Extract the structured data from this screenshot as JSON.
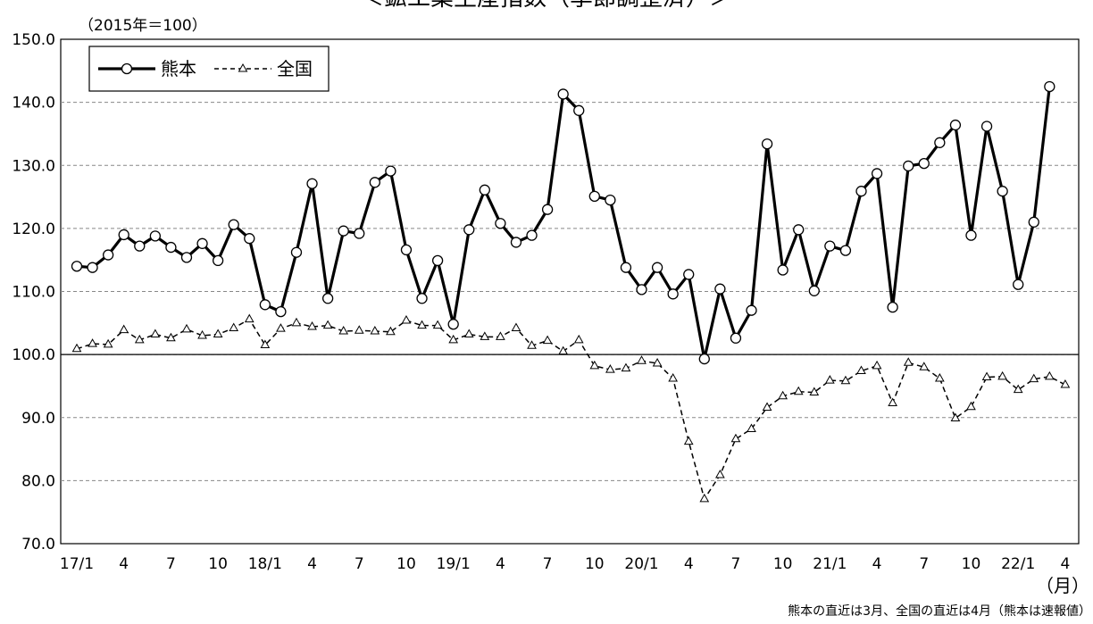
{
  "chart_data": {
    "type": "line",
    "title": "＜鉱工業生産指数（季節調整済）＞",
    "unit_note": "（2015年＝100）",
    "x_unit": "（月）",
    "footnote": "熊本の直近は3月、全国の直近は4月（熊本は速報値）",
    "categories": [
      "17/1",
      null,
      null,
      "4",
      null,
      null,
      "7",
      null,
      null,
      "10",
      null,
      null,
      "18/1",
      null,
      null,
      "4",
      null,
      null,
      "7",
      null,
      null,
      "10",
      null,
      null,
      "19/1",
      null,
      null,
      "4",
      null,
      null,
      "7",
      null,
      null,
      "10",
      null,
      null,
      "20/1",
      null,
      null,
      "4",
      null,
      null,
      "7",
      null,
      null,
      "10",
      null,
      null,
      "21/1",
      null,
      null,
      "4",
      null,
      null,
      "7",
      null,
      null,
      "10",
      null,
      null,
      "22/1",
      null,
      null,
      "4"
    ],
    "series": [
      {
        "name": "熊本",
        "color": "#000000",
        "style": "solid",
        "marker": "circle",
        "values": [
          114.0,
          113.8,
          115.8,
          119.0,
          117.2,
          118.8,
          117.0,
          115.4,
          117.6,
          114.9,
          120.6,
          118.4,
          107.9,
          106.8,
          116.2,
          127.1,
          108.9,
          119.6,
          119.2,
          127.3,
          129.1,
          116.6,
          108.9,
          114.9,
          104.8,
          119.8,
          126.1,
          120.8,
          117.8,
          118.9,
          123.0,
          141.3,
          138.7,
          125.1,
          124.5,
          113.8,
          110.3,
          113.8,
          109.6,
          112.7,
          99.3,
          110.4,
          102.6,
          107.0,
          133.4,
          113.4,
          119.8,
          110.1,
          117.2,
          116.5,
          125.9,
          128.7,
          107.5,
          129.9,
          130.3,
          133.6,
          136.4,
          118.9,
          136.2,
          125.9,
          111.1,
          121.0,
          142.5,
          null
        ]
      },
      {
        "name": "全国",
        "color": "#000000",
        "style": "dashed",
        "marker": "triangle",
        "values": [
          100.9,
          101.7,
          101.6,
          103.9,
          102.3,
          103.2,
          102.6,
          104.0,
          103.0,
          103.2,
          104.2,
          105.6,
          101.5,
          104.1,
          105.0,
          104.4,
          104.6,
          103.7,
          103.8,
          103.7,
          103.6,
          105.4,
          104.6,
          104.6,
          102.3,
          103.2,
          102.8,
          102.8,
          104.2,
          101.4,
          102.2,
          100.5,
          102.3,
          98.2,
          97.6,
          97.8,
          99.0,
          98.6,
          96.2,
          86.2,
          77.1,
          80.9,
          86.6,
          88.2,
          91.6,
          93.4,
          94.1,
          94.0,
          95.9,
          95.8,
          97.4,
          98.2,
          92.3,
          98.7,
          98.0,
          96.2,
          89.9,
          91.7,
          96.4,
          96.5,
          94.4,
          96.1,
          96.5,
          95.2
        ]
      }
    ],
    "ylim": [
      70,
      150
    ],
    "yticks": [
      {
        "value": 70,
        "label": "70.0"
      },
      {
        "value": 80,
        "label": "80.0"
      },
      {
        "value": 90,
        "label": "90.0"
      },
      {
        "value": 100,
        "label": "100.0"
      },
      {
        "value": 110,
        "label": "110.0"
      },
      {
        "value": 120,
        "label": "120.0"
      },
      {
        "value": 130,
        "label": "130.0"
      },
      {
        "value": 140,
        "label": "140.0"
      },
      {
        "value": 150,
        "label": "150.0"
      }
    ],
    "reference_line": 100,
    "grid": true,
    "legend": "upper left"
  }
}
